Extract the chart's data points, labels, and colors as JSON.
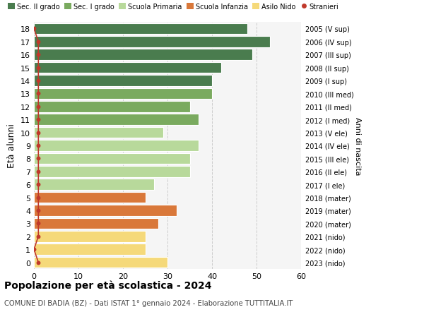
{
  "ages": [
    18,
    17,
    16,
    15,
    14,
    13,
    12,
    11,
    10,
    9,
    8,
    7,
    6,
    5,
    4,
    3,
    2,
    1,
    0
  ],
  "labels_right": [
    "2005 (V sup)",
    "2006 (IV sup)",
    "2007 (III sup)",
    "2008 (II sup)",
    "2009 (I sup)",
    "2010 (III med)",
    "2011 (II med)",
    "2012 (I med)",
    "2013 (V ele)",
    "2014 (IV ele)",
    "2015 (III ele)",
    "2016 (II ele)",
    "2017 (I ele)",
    "2018 (mater)",
    "2019 (mater)",
    "2020 (mater)",
    "2021 (nido)",
    "2022 (nido)",
    "2023 (nido)"
  ],
  "values": [
    48,
    53,
    49,
    42,
    40,
    40,
    35,
    37,
    29,
    37,
    35,
    35,
    27,
    25,
    32,
    28,
    25,
    25,
    30
  ],
  "stranieri": [
    0,
    1,
    1,
    1,
    1,
    1,
    1,
    1,
    1,
    1,
    1,
    1,
    1,
    1,
    1,
    1,
    1,
    0,
    1
  ],
  "bar_colors": [
    "#4a7c4e",
    "#4a7c4e",
    "#4a7c4e",
    "#4a7c4e",
    "#4a7c4e",
    "#7aaa5f",
    "#7aaa5f",
    "#7aaa5f",
    "#b8d99b",
    "#b8d99b",
    "#b8d99b",
    "#b8d99b",
    "#b8d99b",
    "#d9783a",
    "#d9783a",
    "#d9783a",
    "#f5d97a",
    "#f5d97a",
    "#f5d97a"
  ],
  "legend_labels": [
    "Sec. II grado",
    "Sec. I grado",
    "Scuola Primaria",
    "Scuola Infanzia",
    "Asilo Nido",
    "Stranieri"
  ],
  "legend_colors": [
    "#4a7c4e",
    "#7aaa5f",
    "#b8d99b",
    "#d9783a",
    "#f5d97a",
    "#c0392b"
  ],
  "stranieri_color": "#c0392b",
  "title": "Popolazione per età scolastica - 2024",
  "subtitle": "COMUNE DI BADIA (BZ) - Dati ISTAT 1° gennaio 2024 - Elaborazione TUTTITALIA.IT",
  "ylabel": "Età alunni",
  "right_ylabel": "Anni di nascita",
  "xlim": [
    0,
    60
  ],
  "xticks": [
    0,
    10,
    20,
    30,
    40,
    50,
    60
  ],
  "bg_color": "#f5f5f5",
  "grid_color": "#cccccc"
}
